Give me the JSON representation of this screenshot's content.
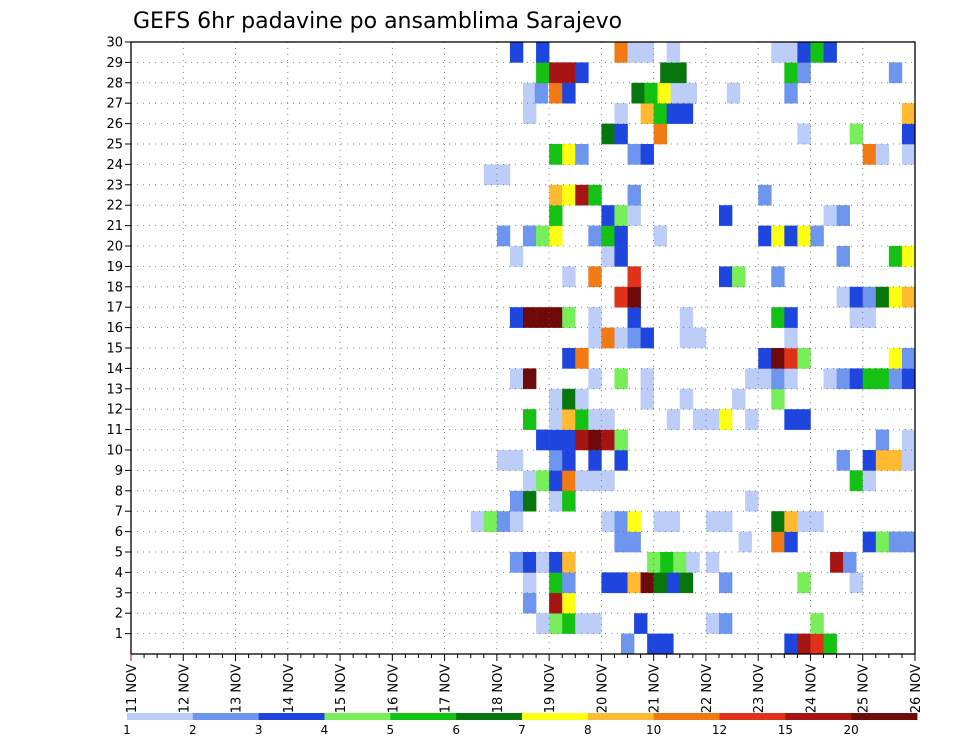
{
  "chart_data": {
    "type": "heatmap",
    "title": "GEFS 6hr padavine po ansamblima Sarajevo",
    "x_tick_labels": [
      "11 NOV",
      "12 NOV",
      "13 NOV",
      "14 NOV",
      "15 NOV",
      "16 NOV",
      "17 NOV",
      "18 NOV",
      "19 NOV",
      "20 NOV",
      "21 NOV",
      "22 NOV",
      "23 NOV",
      "24 NOV",
      "25 NOV",
      "26 NOV"
    ],
    "y_tick_labels": [
      "1",
      "2",
      "3",
      "4",
      "5",
      "6",
      "7",
      "8",
      "9",
      "10",
      "11",
      "12",
      "13",
      "14",
      "15",
      "16",
      "17",
      "18",
      "19",
      "20",
      "21",
      "22",
      "23",
      "24",
      "25",
      "26",
      "27",
      "28",
      "29",
      "30"
    ],
    "xlim": [
      0,
      60
    ],
    "ylim": [
      0,
      30
    ],
    "grid": true,
    "x_unit": "6-hour step since 11 NOV 00Z",
    "y_unit": "ensemble member",
    "colorbar": {
      "labels": [
        "1",
        "2",
        "3",
        "4",
        "5",
        "6",
        "7",
        "8",
        "10",
        "12",
        "15",
        "20"
      ],
      "colors": [
        "#bccdf7",
        "#6e96ef",
        "#1e46df",
        "#78ee5a",
        "#14c214",
        "#07760c",
        "#ffff14",
        "#ffba32",
        "#f27a14",
        "#e03218",
        "#a61414",
        "#6e0a0a"
      ]
    },
    "cells": [
      {
        "m": 0,
        "t": 37.5,
        "c": 1
      },
      {
        "m": 0,
        "t": 39.5,
        "c": 2
      },
      {
        "m": 0,
        "t": 40.5,
        "c": 2
      },
      {
        "m": 0,
        "t": 50,
        "c": 2
      },
      {
        "m": 0,
        "t": 51,
        "c": 10
      },
      {
        "m": 0,
        "t": 52,
        "c": 9
      },
      {
        "m": 0,
        "t": 53,
        "c": 4
      },
      {
        "m": 1,
        "t": 31,
        "c": 0
      },
      {
        "m": 1,
        "t": 32,
        "c": 3
      },
      {
        "m": 1,
        "t": 33,
        "c": 4
      },
      {
        "m": 1,
        "t": 34,
        "c": 0
      },
      {
        "m": 1,
        "t": 35,
        "c": 0
      },
      {
        "m": 1,
        "t": 38.5,
        "c": 2
      },
      {
        "m": 1,
        "t": 44,
        "c": 0
      },
      {
        "m": 1,
        "t": 45,
        "c": 1
      },
      {
        "m": 1,
        "t": 52,
        "c": 3
      },
      {
        "m": 2,
        "t": 30,
        "c": 1
      },
      {
        "m": 2,
        "t": 32,
        "c": 10
      },
      {
        "m": 2,
        "t": 33,
        "c": 6
      },
      {
        "m": 3,
        "t": 30,
        "c": 0
      },
      {
        "m": 3,
        "t": 32,
        "c": 4
      },
      {
        "m": 3,
        "t": 33,
        "c": 1
      },
      {
        "m": 3,
        "t": 36,
        "c": 2
      },
      {
        "m": 3,
        "t": 37,
        "c": 2
      },
      {
        "m": 3,
        "t": 38,
        "c": 7
      },
      {
        "m": 3,
        "t": 39,
        "c": 11
      },
      {
        "m": 3,
        "t": 40,
        "c": 5
      },
      {
        "m": 3,
        "t": 41,
        "c": 2
      },
      {
        "m": 3,
        "t": 42,
        "c": 5
      },
      {
        "m": 3,
        "t": 45,
        "c": 1
      },
      {
        "m": 3,
        "t": 51,
        "c": 3
      },
      {
        "m": 3,
        "t": 55,
        "c": 0
      },
      {
        "m": 4,
        "t": 29,
        "c": 1
      },
      {
        "m": 4,
        "t": 30,
        "c": 2
      },
      {
        "m": 4,
        "t": 31,
        "c": 0
      },
      {
        "m": 4,
        "t": 32,
        "c": 2
      },
      {
        "m": 4,
        "t": 33,
        "c": 7
      },
      {
        "m": 4,
        "t": 39.5,
        "c": 3
      },
      {
        "m": 4,
        "t": 40.5,
        "c": 4
      },
      {
        "m": 4,
        "t": 41.5,
        "c": 3
      },
      {
        "m": 4,
        "t": 42.5,
        "c": 0
      },
      {
        "m": 4,
        "t": 44,
        "c": 0
      },
      {
        "m": 4,
        "t": 53.5,
        "c": 10
      },
      {
        "m": 4,
        "t": 54.5,
        "c": 1
      },
      {
        "m": 5,
        "t": 37,
        "c": 1
      },
      {
        "m": 5,
        "t": 38,
        "c": 1
      },
      {
        "m": 5,
        "t": 46.5,
        "c": 0
      },
      {
        "m": 5,
        "t": 49,
        "c": 8
      },
      {
        "m": 5,
        "t": 50,
        "c": 2
      },
      {
        "m": 5,
        "t": 56,
        "c": 2
      },
      {
        "m": 5,
        "t": 57,
        "c": 3
      },
      {
        "m": 5,
        "t": 58,
        "c": 1
      },
      {
        "m": 5,
        "t": 59,
        "c": 1
      },
      {
        "m": 6,
        "t": 26,
        "c": 0
      },
      {
        "m": 6,
        "t": 27,
        "c": 3
      },
      {
        "m": 6,
        "t": 28,
        "c": 1
      },
      {
        "m": 6,
        "t": 29,
        "c": 0
      },
      {
        "m": 6,
        "t": 36,
        "c": 0
      },
      {
        "m": 6,
        "t": 37,
        "c": 1
      },
      {
        "m": 6,
        "t": 38,
        "c": 6
      },
      {
        "m": 6,
        "t": 40,
        "c": 0
      },
      {
        "m": 6,
        "t": 41,
        "c": 0
      },
      {
        "m": 6,
        "t": 44,
        "c": 0
      },
      {
        "m": 6,
        "t": 45,
        "c": 0
      },
      {
        "m": 6,
        "t": 49,
        "c": 5
      },
      {
        "m": 6,
        "t": 50,
        "c": 7
      },
      {
        "m": 6,
        "t": 51,
        "c": 0
      },
      {
        "m": 6,
        "t": 52,
        "c": 0
      },
      {
        "m": 7,
        "t": 29,
        "c": 1
      },
      {
        "m": 7,
        "t": 30,
        "c": 5
      },
      {
        "m": 7,
        "t": 32,
        "c": 0
      },
      {
        "m": 7,
        "t": 33,
        "c": 4
      },
      {
        "m": 7,
        "t": 47,
        "c": 0
      },
      {
        "m": 8,
        "t": 30,
        "c": 0
      },
      {
        "m": 8,
        "t": 31,
        "c": 3
      },
      {
        "m": 8,
        "t": 32,
        "c": 2
      },
      {
        "m": 8,
        "t": 33,
        "c": 8
      },
      {
        "m": 8,
        "t": 34,
        "c": 0
      },
      {
        "m": 8,
        "t": 35,
        "c": 0
      },
      {
        "m": 8,
        "t": 36,
        "c": 0
      },
      {
        "m": 8,
        "t": 55,
        "c": 4
      },
      {
        "m": 8,
        "t": 56,
        "c": 0
      },
      {
        "m": 9,
        "t": 28,
        "c": 0
      },
      {
        "m": 9,
        "t": 29,
        "c": 0
      },
      {
        "m": 9,
        "t": 32,
        "c": 1
      },
      {
        "m": 9,
        "t": 33,
        "c": 2
      },
      {
        "m": 9,
        "t": 35,
        "c": 2
      },
      {
        "m": 9,
        "t": 37,
        "c": 2
      },
      {
        "m": 9,
        "t": 54,
        "c": 1
      },
      {
        "m": 9,
        "t": 56,
        "c": 2
      },
      {
        "m": 9,
        "t": 57,
        "c": 7
      },
      {
        "m": 9,
        "t": 58,
        "c": 7
      },
      {
        "m": 9,
        "t": 59,
        "c": 0
      },
      {
        "m": 10,
        "t": 31,
        "c": 2
      },
      {
        "m": 10,
        "t": 32,
        "c": 2
      },
      {
        "m": 10,
        "t": 33,
        "c": 2
      },
      {
        "m": 10,
        "t": 34,
        "c": 10
      },
      {
        "m": 10,
        "t": 35,
        "c": 11
      },
      {
        "m": 10,
        "t": 36,
        "c": 10
      },
      {
        "m": 10,
        "t": 37,
        "c": 3
      },
      {
        "m": 10,
        "t": 57,
        "c": 1
      },
      {
        "m": 10,
        "t": 59,
        "c": 0
      },
      {
        "m": 11,
        "t": 30,
        "c": 4
      },
      {
        "m": 11,
        "t": 32,
        "c": 0
      },
      {
        "m": 11,
        "t": 33,
        "c": 7
      },
      {
        "m": 11,
        "t": 34,
        "c": 4
      },
      {
        "m": 11,
        "t": 35,
        "c": 0
      },
      {
        "m": 11,
        "t": 36,
        "c": 0
      },
      {
        "m": 11,
        "t": 41,
        "c": 0
      },
      {
        "m": 11,
        "t": 43,
        "c": 0
      },
      {
        "m": 11,
        "t": 44,
        "c": 0
      },
      {
        "m": 11,
        "t": 45,
        "c": 6
      },
      {
        "m": 11,
        "t": 47,
        "c": 0
      },
      {
        "m": 11,
        "t": 50,
        "c": 2
      },
      {
        "m": 11,
        "t": 51,
        "c": 2
      },
      {
        "m": 12,
        "t": 32,
        "c": 0
      },
      {
        "m": 12,
        "t": 33,
        "c": 5
      },
      {
        "m": 12,
        "t": 34,
        "c": 0
      },
      {
        "m": 12,
        "t": 39,
        "c": 0
      },
      {
        "m": 12,
        "t": 42,
        "c": 0
      },
      {
        "m": 12,
        "t": 46,
        "c": 0
      },
      {
        "m": 12,
        "t": 49,
        "c": 3
      },
      {
        "m": 13,
        "t": 29,
        "c": 0
      },
      {
        "m": 13,
        "t": 30,
        "c": 11
      },
      {
        "m": 13,
        "t": 35,
        "c": 0
      },
      {
        "m": 13,
        "t": 37,
        "c": 3
      },
      {
        "m": 13,
        "t": 39,
        "c": 0
      },
      {
        "m": 13,
        "t": 47,
        "c": 0
      },
      {
        "m": 13,
        "t": 48,
        "c": 0
      },
      {
        "m": 13,
        "t": 49,
        "c": 1
      },
      {
        "m": 13,
        "t": 50,
        "c": 0
      },
      {
        "m": 13,
        "t": 53,
        "c": 0
      },
      {
        "m": 13,
        "t": 54,
        "c": 1
      },
      {
        "m": 13,
        "t": 55,
        "c": 2
      },
      {
        "m": 13,
        "t": 56,
        "c": 4
      },
      {
        "m": 13,
        "t": 57,
        "c": 4
      },
      {
        "m": 13,
        "t": 58,
        "c": 1
      },
      {
        "m": 13,
        "t": 59,
        "c": 2
      },
      {
        "m": 14,
        "t": 33,
        "c": 2
      },
      {
        "m": 14,
        "t": 34,
        "c": 8
      },
      {
        "m": 14,
        "t": 48,
        "c": 2
      },
      {
        "m": 14,
        "t": 49,
        "c": 11
      },
      {
        "m": 14,
        "t": 50,
        "c": 9
      },
      {
        "m": 14,
        "t": 51,
        "c": 3
      },
      {
        "m": 14,
        "t": 58,
        "c": 6
      },
      {
        "m": 14,
        "t": 59,
        "c": 1
      },
      {
        "m": 15,
        "t": 35,
        "c": 0
      },
      {
        "m": 15,
        "t": 36,
        "c": 8
      },
      {
        "m": 15,
        "t": 37,
        "c": 0
      },
      {
        "m": 15,
        "t": 38,
        "c": 1
      },
      {
        "m": 15,
        "t": 39,
        "c": 2
      },
      {
        "m": 15,
        "t": 42,
        "c": 0
      },
      {
        "m": 15,
        "t": 43,
        "c": 0
      },
      {
        "m": 15,
        "t": 50,
        "c": 0
      },
      {
        "m": 16,
        "t": 29,
        "c": 2
      },
      {
        "m": 16,
        "t": 30,
        "c": 11
      },
      {
        "m": 16,
        "t": 31,
        "c": 11
      },
      {
        "m": 16,
        "t": 32,
        "c": 11
      },
      {
        "m": 16,
        "t": 33,
        "c": 3
      },
      {
        "m": 16,
        "t": 35,
        "c": 0
      },
      {
        "m": 16,
        "t": 38,
        "c": 2
      },
      {
        "m": 16,
        "t": 42,
        "c": 0
      },
      {
        "m": 16,
        "t": 49,
        "c": 4
      },
      {
        "m": 16,
        "t": 50,
        "c": 2
      },
      {
        "m": 16,
        "t": 55,
        "c": 0
      },
      {
        "m": 16,
        "t": 56,
        "c": 0
      },
      {
        "m": 17,
        "t": 37,
        "c": 9
      },
      {
        "m": 17,
        "t": 38,
        "c": 11
      },
      {
        "m": 17,
        "t": 54,
        "c": 0
      },
      {
        "m": 17,
        "t": 55,
        "c": 2
      },
      {
        "m": 17,
        "t": 56,
        "c": 1
      },
      {
        "m": 17,
        "t": 57,
        "c": 5
      },
      {
        "m": 17,
        "t": 58,
        "c": 6
      },
      {
        "m": 17,
        "t": 59,
        "c": 7
      },
      {
        "m": 18,
        "t": 33,
        "c": 0
      },
      {
        "m": 18,
        "t": 35,
        "c": 8
      },
      {
        "m": 18,
        "t": 38,
        "c": 9
      },
      {
        "m": 18,
        "t": 45,
        "c": 2
      },
      {
        "m": 18,
        "t": 46,
        "c": 3
      },
      {
        "m": 18,
        "t": 49,
        "c": 1
      },
      {
        "m": 19,
        "t": 29,
        "c": 0
      },
      {
        "m": 19,
        "t": 36,
        "c": 0
      },
      {
        "m": 19,
        "t": 37,
        "c": 2
      },
      {
        "m": 19,
        "t": 54,
        "c": 1
      },
      {
        "m": 19,
        "t": 58,
        "c": 4
      },
      {
        "m": 19,
        "t": 59,
        "c": 6
      },
      {
        "m": 20,
        "t": 28,
        "c": 1
      },
      {
        "m": 20,
        "t": 30,
        "c": 1
      },
      {
        "m": 20,
        "t": 31,
        "c": 3
      },
      {
        "m": 20,
        "t": 32,
        "c": 6
      },
      {
        "m": 20,
        "t": 35,
        "c": 1
      },
      {
        "m": 20,
        "t": 36,
        "c": 4
      },
      {
        "m": 20,
        "t": 37,
        "c": 2
      },
      {
        "m": 20,
        "t": 40,
        "c": 0
      },
      {
        "m": 20,
        "t": 48,
        "c": 2
      },
      {
        "m": 20,
        "t": 49,
        "c": 6
      },
      {
        "m": 20,
        "t": 50,
        "c": 2
      },
      {
        "m": 20,
        "t": 51,
        "c": 6
      },
      {
        "m": 20,
        "t": 52,
        "c": 1
      },
      {
        "m": 21,
        "t": 32,
        "c": 4
      },
      {
        "m": 21,
        "t": 36,
        "c": 2
      },
      {
        "m": 21,
        "t": 37,
        "c": 3
      },
      {
        "m": 21,
        "t": 38,
        "c": 0
      },
      {
        "m": 21,
        "t": 45,
        "c": 2
      },
      {
        "m": 21,
        "t": 53,
        "c": 0
      },
      {
        "m": 21,
        "t": 54,
        "c": 1
      },
      {
        "m": 22,
        "t": 32,
        "c": 7
      },
      {
        "m": 22,
        "t": 33,
        "c": 6
      },
      {
        "m": 22,
        "t": 34,
        "c": 10
      },
      {
        "m": 22,
        "t": 35,
        "c": 4
      },
      {
        "m": 22,
        "t": 38,
        "c": 1
      },
      {
        "m": 22,
        "t": 48,
        "c": 1
      },
      {
        "m": 23,
        "t": 27,
        "c": 0
      },
      {
        "m": 23,
        "t": 28,
        "c": 0
      },
      {
        "m": 24,
        "t": 32,
        "c": 4
      },
      {
        "m": 24,
        "t": 33,
        "c": 6
      },
      {
        "m": 24,
        "t": 34,
        "c": 1
      },
      {
        "m": 24,
        "t": 38,
        "c": 1
      },
      {
        "m": 24,
        "t": 39,
        "c": 2
      },
      {
        "m": 24,
        "t": 56,
        "c": 8
      },
      {
        "m": 24,
        "t": 57,
        "c": 0
      },
      {
        "m": 24,
        "t": 59,
        "c": 0
      },
      {
        "m": 25,
        "t": 36,
        "c": 5
      },
      {
        "m": 25,
        "t": 37,
        "c": 2
      },
      {
        "m": 25,
        "t": 40,
        "c": 8
      },
      {
        "m": 25,
        "t": 51,
        "c": 0
      },
      {
        "m": 25,
        "t": 55,
        "c": 3
      },
      {
        "m": 25,
        "t": 59,
        "c": 2
      },
      {
        "m": 26,
        "t": 30,
        "c": 0
      },
      {
        "m": 26,
        "t": 37,
        "c": 0
      },
      {
        "m": 26,
        "t": 39,
        "c": 7
      },
      {
        "m": 26,
        "t": 40,
        "c": 4
      },
      {
        "m": 26,
        "t": 41,
        "c": 2
      },
      {
        "m": 26,
        "t": 42,
        "c": 2
      },
      {
        "m": 26,
        "t": 59,
        "c": 7
      },
      {
        "m": 26,
        "t": 60,
        "c": 2
      },
      {
        "m": 27,
        "t": 30,
        "c": 0
      },
      {
        "m": 27,
        "t": 30.9,
        "c": 1
      },
      {
        "m": 27,
        "t": 32,
        "c": 8
      },
      {
        "m": 27,
        "t": 33,
        "c": 2
      },
      {
        "m": 27,
        "t": 38.3,
        "c": 5
      },
      {
        "m": 27,
        "t": 39.3,
        "c": 4
      },
      {
        "m": 27,
        "t": 40.3,
        "c": 6
      },
      {
        "m": 27,
        "t": 41.3,
        "c": 0
      },
      {
        "m": 27,
        "t": 42.3,
        "c": 0
      },
      {
        "m": 27,
        "t": 45.6,
        "c": 0
      },
      {
        "m": 27,
        "t": 50,
        "c": 1
      },
      {
        "m": 28,
        "t": 31,
        "c": 4
      },
      {
        "m": 28,
        "t": 32,
        "c": 10
      },
      {
        "m": 28,
        "t": 33,
        "c": 10
      },
      {
        "m": 28,
        "t": 34,
        "c": 2
      },
      {
        "m": 28,
        "t": 40.5,
        "c": 5
      },
      {
        "m": 28,
        "t": 41.5,
        "c": 5
      },
      {
        "m": 28,
        "t": 50,
        "c": 4
      },
      {
        "m": 28,
        "t": 51,
        "c": 1
      },
      {
        "m": 28,
        "t": 58,
        "c": 1
      },
      {
        "m": 28,
        "t": 60,
        "c": 4
      },
      {
        "m": 29,
        "t": 29,
        "c": 2
      },
      {
        "m": 29,
        "t": 31,
        "c": 2
      },
      {
        "m": 29,
        "t": 37,
        "c": 8
      },
      {
        "m": 29,
        "t": 38,
        "c": 0
      },
      {
        "m": 29,
        "t": 39,
        "c": 0
      },
      {
        "m": 29,
        "t": 41,
        "c": 0
      },
      {
        "m": 29,
        "t": 49,
        "c": 0
      },
      {
        "m": 29,
        "t": 50,
        "c": 0
      },
      {
        "m": 29,
        "t": 51,
        "c": 2
      },
      {
        "m": 29,
        "t": 52,
        "c": 4
      },
      {
        "m": 29,
        "t": 53,
        "c": 2
      }
    ]
  }
}
